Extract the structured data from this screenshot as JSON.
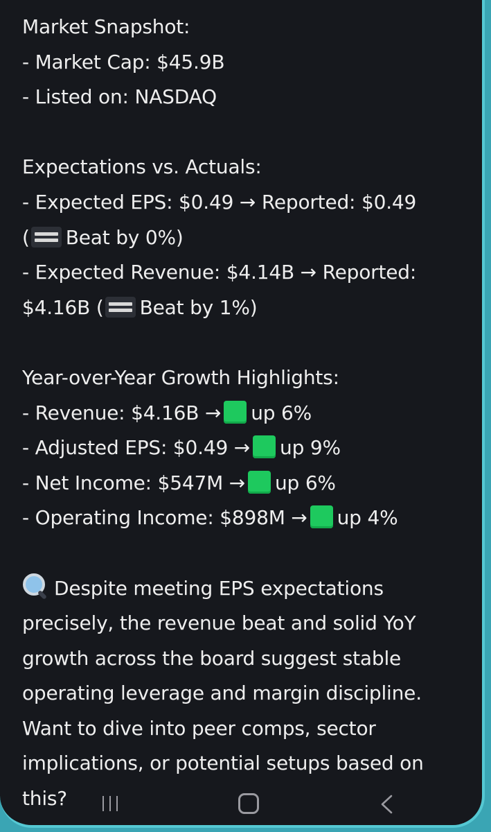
{
  "market_snapshot": {
    "heading": "Market Snapshot:",
    "market_cap": "- Market Cap: $45.9B",
    "listed_on": "- Listed on: NASDAQ"
  },
  "expectations": {
    "heading": "Expectations vs. Actuals:",
    "eps_line1": "- Expected EPS: $0.49 → Reported: $0.49",
    "eps_open": "(",
    "eps_line2": "Beat by 0%)",
    "rev_line1": "- Expected Revenue: $4.14B → Reported:",
    "rev_prefix": "$4.16B (",
    "rev_line2": "Beat by 1%)"
  },
  "growth": {
    "heading": "Year-over-Year Growth Highlights:",
    "items": [
      {
        "label": "- Revenue: $4.16B →",
        "change": "up 6%"
      },
      {
        "label": "- Adjusted EPS: $0.49 →",
        "change": "up 9%"
      },
      {
        "label": "- Net Income: $547M →",
        "change": "up 6%"
      },
      {
        "label": "- Operating Income: $898M →",
        "change": "up 4%"
      }
    ]
  },
  "summary": {
    "icon": "magnifying-glass-icon",
    "lines": [
      "Despite meeting EPS expectations",
      "precisely, the revenue beat and solid YoY",
      "growth across the board suggest stable",
      "operating leverage and margin discipline.",
      "Want to dive into peer comps, sector",
      "implications, or potential setups based on",
      "this?"
    ]
  },
  "colors": {
    "background": "#16181d",
    "text": "#eeeeee",
    "accent_frame": "#55c8d3",
    "up_square": "#1ec95e"
  },
  "navbar": {
    "recents_icon": "recents-icon",
    "home_icon": "home-icon",
    "back_icon": "back-icon"
  }
}
